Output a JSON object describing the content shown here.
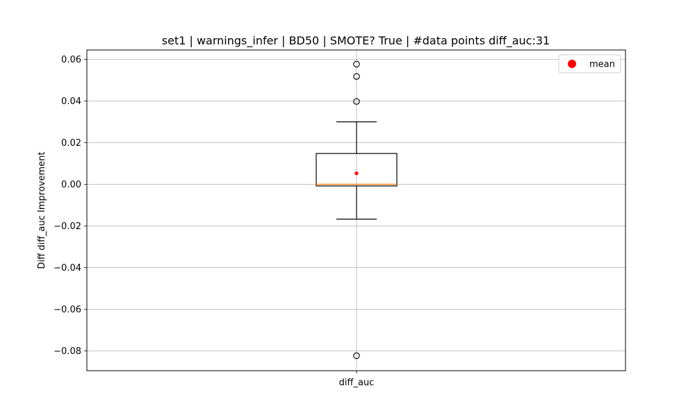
{
  "chart_data": {
    "type": "box",
    "title": "set1 | warnings_infer | BD50 | SMOTE? True | #data points diff_auc:31",
    "xlabel": "",
    "ylabel": "Diff diff_auc Improvement",
    "categories": [
      "diff_auc"
    ],
    "ylim": [
      -0.0895,
      0.0645
    ],
    "yticks": [
      0.06,
      0.04,
      0.02,
      0.0,
      -0.02,
      -0.04,
      -0.06,
      -0.08
    ],
    "ytick_labels": [
      "0.06",
      "0.04",
      "0.02",
      "0.00",
      "−0.02",
      "−0.04",
      "−0.06",
      "−0.08"
    ],
    "grid": true,
    "legend": {
      "placement": "top-right",
      "entries": [
        {
          "label": "mean",
          "color": "#ff0000"
        }
      ]
    },
    "boxes": [
      {
        "category": "diff_auc",
        "whisker_low": -0.0167,
        "q1": -0.0008,
        "median": 0.0,
        "q3": 0.0148,
        "whisker_high": 0.03,
        "mean": 0.0053,
        "outliers": [
          0.0577,
          0.0518,
          0.0398,
          -0.0823
        ]
      }
    ],
    "colors": {
      "box": "#000000",
      "median": "#ff7f0e",
      "mean": "#ff0000",
      "grid": "#b0b0b0"
    }
  }
}
